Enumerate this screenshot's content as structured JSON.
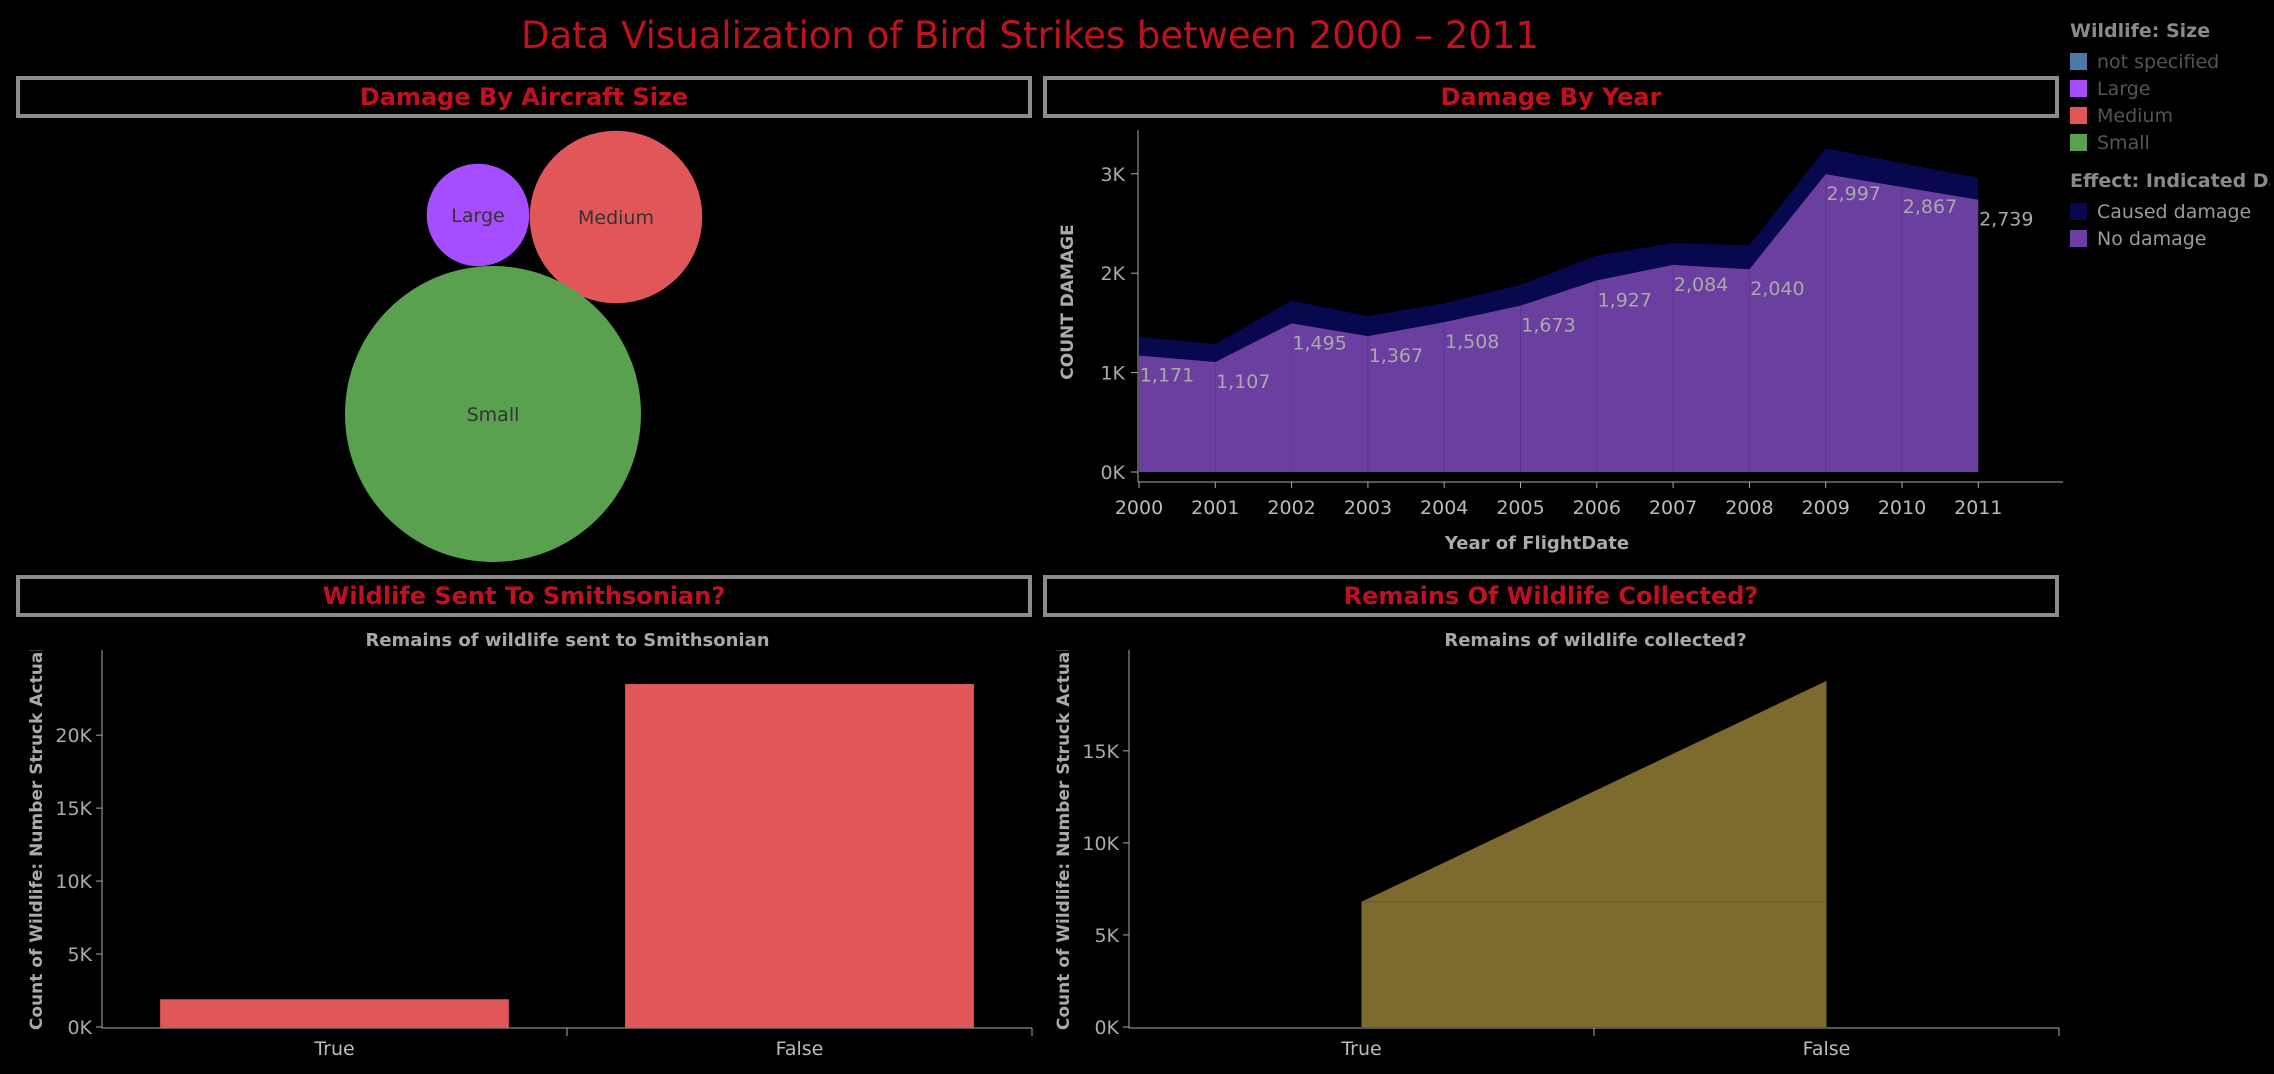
{
  "page_title": "Data Visualization of Bird Strikes between 2000 – 2011",
  "legend": {
    "size_title": "Wildlife: Size",
    "size_items": [
      {
        "label": "not specified",
        "color": "#4e79a7"
      },
      {
        "label": "Large",
        "color": "#a64dff"
      },
      {
        "label": "Medium",
        "color": "#e15759"
      },
      {
        "label": "Small",
        "color": "#59a14f"
      }
    ],
    "effect_title": "Effect: Indicated Da..",
    "effect_items": [
      {
        "label": "Caused damage",
        "color": "#08084e"
      },
      {
        "label": "No damage",
        "color": "#6b3fa0"
      }
    ]
  },
  "panels": {
    "size": {
      "header": "Damage By Aircraft Size"
    },
    "year": {
      "header": "Damage By Year"
    },
    "smithsonian": {
      "header": "Wildlife Sent To Smithsonian?"
    },
    "remains": {
      "header": "Remains Of Wildlife Collected?"
    }
  },
  "chart_data": [
    {
      "type": "bubble",
      "title": "Damage By Aircraft Size",
      "bubbles": [
        {
          "label": "Large",
          "relative_size": 0.12,
          "color": "#a64dff"
        },
        {
          "label": "Medium",
          "relative_size": 0.34,
          "color": "#e15759"
        },
        {
          "label": "Small",
          "relative_size": 1.0,
          "color": "#59a14f"
        }
      ]
    },
    {
      "type": "area",
      "title": "Damage By Year",
      "xlabel": "Year of FlightDate",
      "ylabel": "COUNT DAMAGE",
      "ylim": [
        0,
        3400
      ],
      "yticks": [
        0,
        1000,
        2000,
        3000
      ],
      "ytick_labels": [
        "0K",
        "1K",
        "2K",
        "3K"
      ],
      "x": [
        "2000",
        "2001",
        "2002",
        "2003",
        "2004",
        "2005",
        "2006",
        "2007",
        "2008",
        "2009",
        "2010",
        "2011"
      ],
      "series": [
        {
          "name": "No damage",
          "color": "#6b3fa0",
          "values": [
            1171,
            1107,
            1495,
            1367,
            1508,
            1673,
            1927,
            2084,
            2040,
            2997,
            2867,
            2739
          ]
        },
        {
          "name": "Caused damage",
          "color": "#08084e",
          "values": [
            190,
            180,
            230,
            200,
            190,
            210,
            250,
            220,
            240,
            260,
            240,
            220
          ]
        }
      ],
      "data_labels": [
        "1,171",
        "1,107",
        "1,495",
        "1,367",
        "1,508",
        "1,673",
        "1,927",
        "2,084",
        "2,040",
        "2,997",
        "2,867",
        "2,739"
      ]
    },
    {
      "type": "bar",
      "title": "Remains of wildlife sent to Smithsonian",
      "categories": [
        "True",
        "False"
      ],
      "values": [
        1900,
        23500
      ],
      "ylabel": "Count of Wildlife: Number Struck Actual",
      "ylim": [
        0,
        24600
      ],
      "yticks": [
        0,
        5000,
        10000,
        15000,
        20000
      ],
      "ytick_labels": [
        "0K",
        "5K",
        "10K",
        "15K",
        "20K"
      ],
      "color": "#e15759"
    },
    {
      "type": "area",
      "title": "Remains of wildlife collected?",
      "categories": [
        "True",
        "False"
      ],
      "values": [
        6800,
        18800
      ],
      "ylabel": "Count of Wildlife: Number Struck Actual",
      "ylim": [
        0,
        19500
      ],
      "yticks": [
        0,
        5000,
        10000,
        15000
      ],
      "ytick_labels": [
        "0K",
        "5K",
        "10K",
        "15K"
      ],
      "color": "#7d6a2e"
    }
  ]
}
